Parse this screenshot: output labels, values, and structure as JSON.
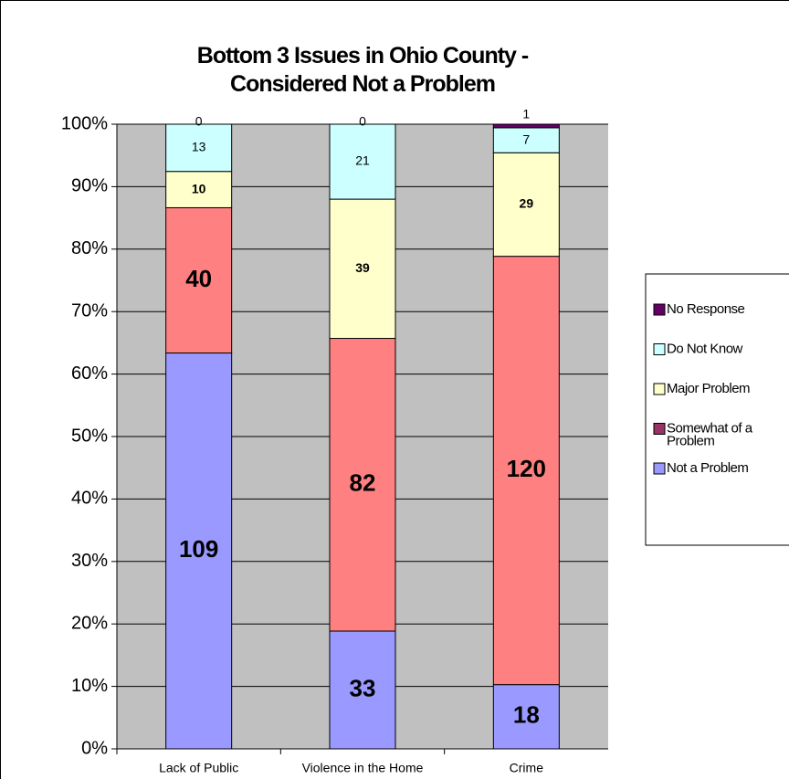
{
  "chart_data": {
    "type": "bar",
    "stacked": "percent",
    "title": "Bottom 3 Issues in Ohio County - Considered Not a Problem",
    "categories": [
      "Lack of Public",
      "Violence in the Home",
      "Crime"
    ],
    "series": [
      {
        "name": "Not a Problem",
        "color": "#9999ff",
        "values": [
          109,
          33,
          18
        ]
      },
      {
        "name": "Somewhat of a Problem",
        "color": "#ff8080",
        "values": [
          40,
          82,
          120
        ]
      },
      {
        "name": "Major Problem",
        "color": "#ffffcc",
        "values": [
          10,
          39,
          29
        ]
      },
      {
        "name": "Do Not Know",
        "color": "#ccffff",
        "values": [
          13,
          21,
          7
        ]
      },
      {
        "name": "No Response",
        "color": "#660066",
        "values": [
          0,
          0,
          1
        ]
      }
    ],
    "ylim": [
      0,
      100
    ],
    "yticks": [
      {
        "value": 0,
        "label": "0%"
      },
      {
        "value": 10,
        "label": "10%"
      },
      {
        "value": 20,
        "label": "20%"
      },
      {
        "value": 30,
        "label": "30%"
      },
      {
        "value": 40,
        "label": "40%"
      },
      {
        "value": 50,
        "label": "50%"
      },
      {
        "value": 60,
        "label": "60%"
      },
      {
        "value": 70,
        "label": "70%"
      },
      {
        "value": 80,
        "label": "80%"
      },
      {
        "value": 90,
        "label": "90%"
      },
      {
        "value": 100,
        "label": "100%"
      }
    ],
    "grid": true,
    "legend": "right",
    "plot_background": "#c0c0c0"
  }
}
